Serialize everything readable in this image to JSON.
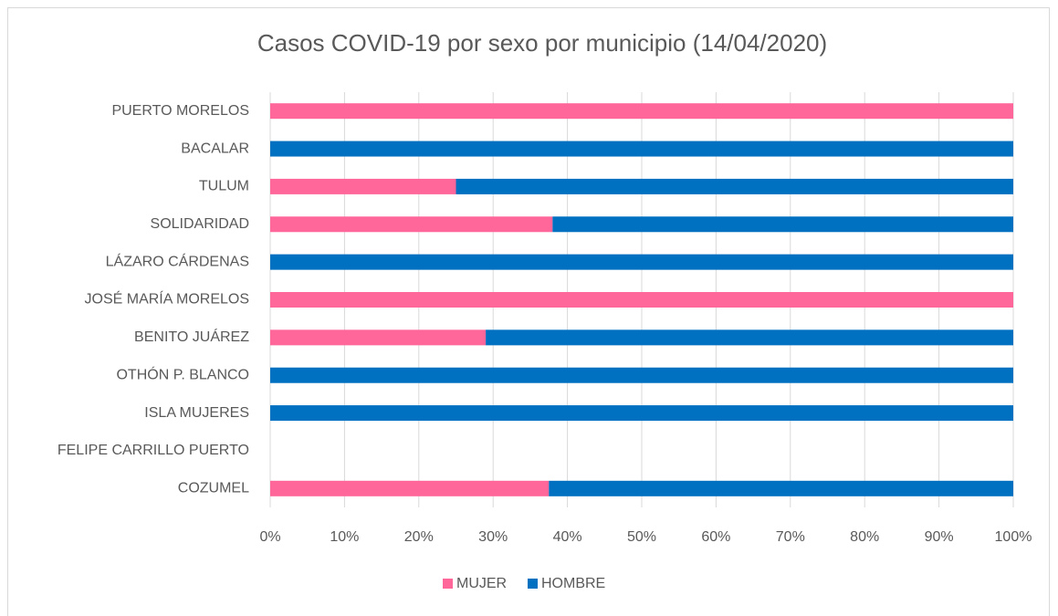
{
  "chart_data": {
    "type": "stacked_bar_horizontal",
    "title": "Casos COVID-19 por sexo por municipio (14/04/2020)",
    "categories": [
      "PUERTO MORELOS",
      "BACALAR",
      "TULUM",
      "SOLIDARIDAD",
      "LÁZARO CÁRDENAS",
      "JOSÉ MARÍA MORELOS",
      "BENITO JUÁREZ",
      "OTHÓN P. BLANCO",
      "ISLA MUJERES",
      "FELIPE CARRILLO PUERTO",
      "COZUMEL"
    ],
    "series": [
      {
        "name": "MUJER",
        "color": "#ff6699",
        "values": [
          100,
          0,
          25,
          38,
          0,
          100,
          29,
          0,
          0,
          null,
          37.5
        ]
      },
      {
        "name": "HOMBRE",
        "color": "#0070c0",
        "values": [
          0,
          100,
          75,
          62,
          100,
          0,
          71,
          100,
          100,
          null,
          62.5
        ]
      }
    ],
    "xlim": [
      0,
      100
    ],
    "xticks": [
      {
        "value": 0,
        "label": "0%"
      },
      {
        "value": 10,
        "label": "10%"
      },
      {
        "value": 20,
        "label": "20%"
      },
      {
        "value": 30,
        "label": "30%"
      },
      {
        "value": 40,
        "label": "40%"
      },
      {
        "value": 50,
        "label": "50%"
      },
      {
        "value": 60,
        "label": "60%"
      },
      {
        "value": 70,
        "label": "70%"
      },
      {
        "value": 80,
        "label": "80%"
      },
      {
        "value": 90,
        "label": "90%"
      },
      {
        "value": 100,
        "label": "100%"
      }
    ],
    "grid": true,
    "legend": "bottom"
  }
}
